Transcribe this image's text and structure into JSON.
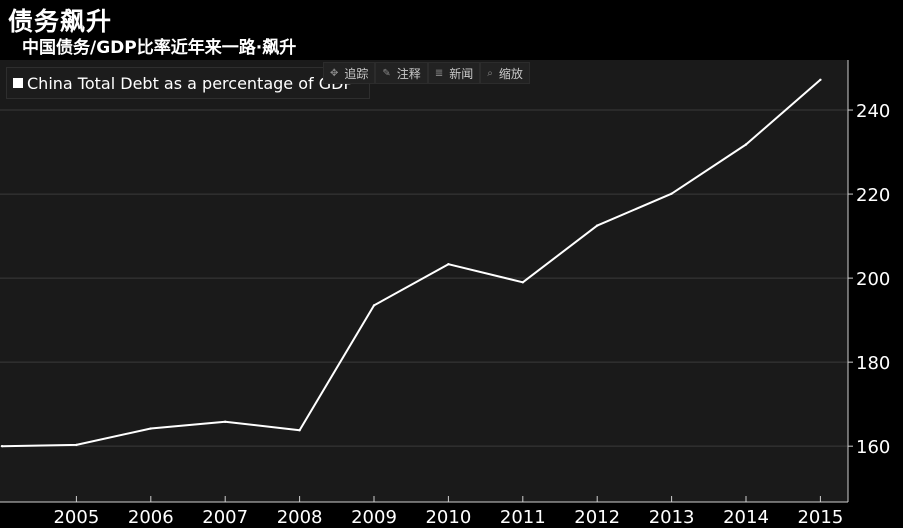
{
  "header": {
    "title": "债务飙升",
    "subtitle": "中国债务/GDP比率近年来一路·飙升"
  },
  "toolbar": {
    "items": [
      {
        "label": "追踪",
        "icon": "crosshair-icon"
      },
      {
        "label": "注释",
        "icon": "pencil-icon"
      },
      {
        "label": "新闻",
        "icon": "news-icon"
      },
      {
        "label": "缩放",
        "icon": "magnifier-icon"
      }
    ]
  },
  "colors": {
    "background": "#000000",
    "plot_background": "#1a1a1a",
    "line": "#ffffff",
    "grid": "#3a3a3a",
    "text": "#ffffff"
  },
  "chart_data": {
    "type": "line",
    "title": "",
    "xlabel": "",
    "ylabel": "",
    "x": [
      2004,
      2005,
      2006,
      2007,
      2008,
      2009,
      2010,
      2011,
      2012,
      2013,
      2014,
      2015
    ],
    "x_tick_labels": [
      "2005",
      "2006",
      "2007",
      "2008",
      "2009",
      "2010",
      "2011",
      "2012",
      "2013",
      "2014",
      "2015"
    ],
    "y_ticks": [
      160,
      180,
      200,
      220,
      240
    ],
    "ylim": [
      150,
      258
    ],
    "y_axis_side": "right",
    "grid": true,
    "legend": "top-left",
    "series": [
      {
        "name": "China Total Debt as a percentage of GDP",
        "values": [
          160,
          160.3,
          164.2,
          165.8,
          163.8,
          193.5,
          203.3,
          199,
          212.5,
          220.1,
          231.8,
          247.2
        ]
      }
    ]
  }
}
